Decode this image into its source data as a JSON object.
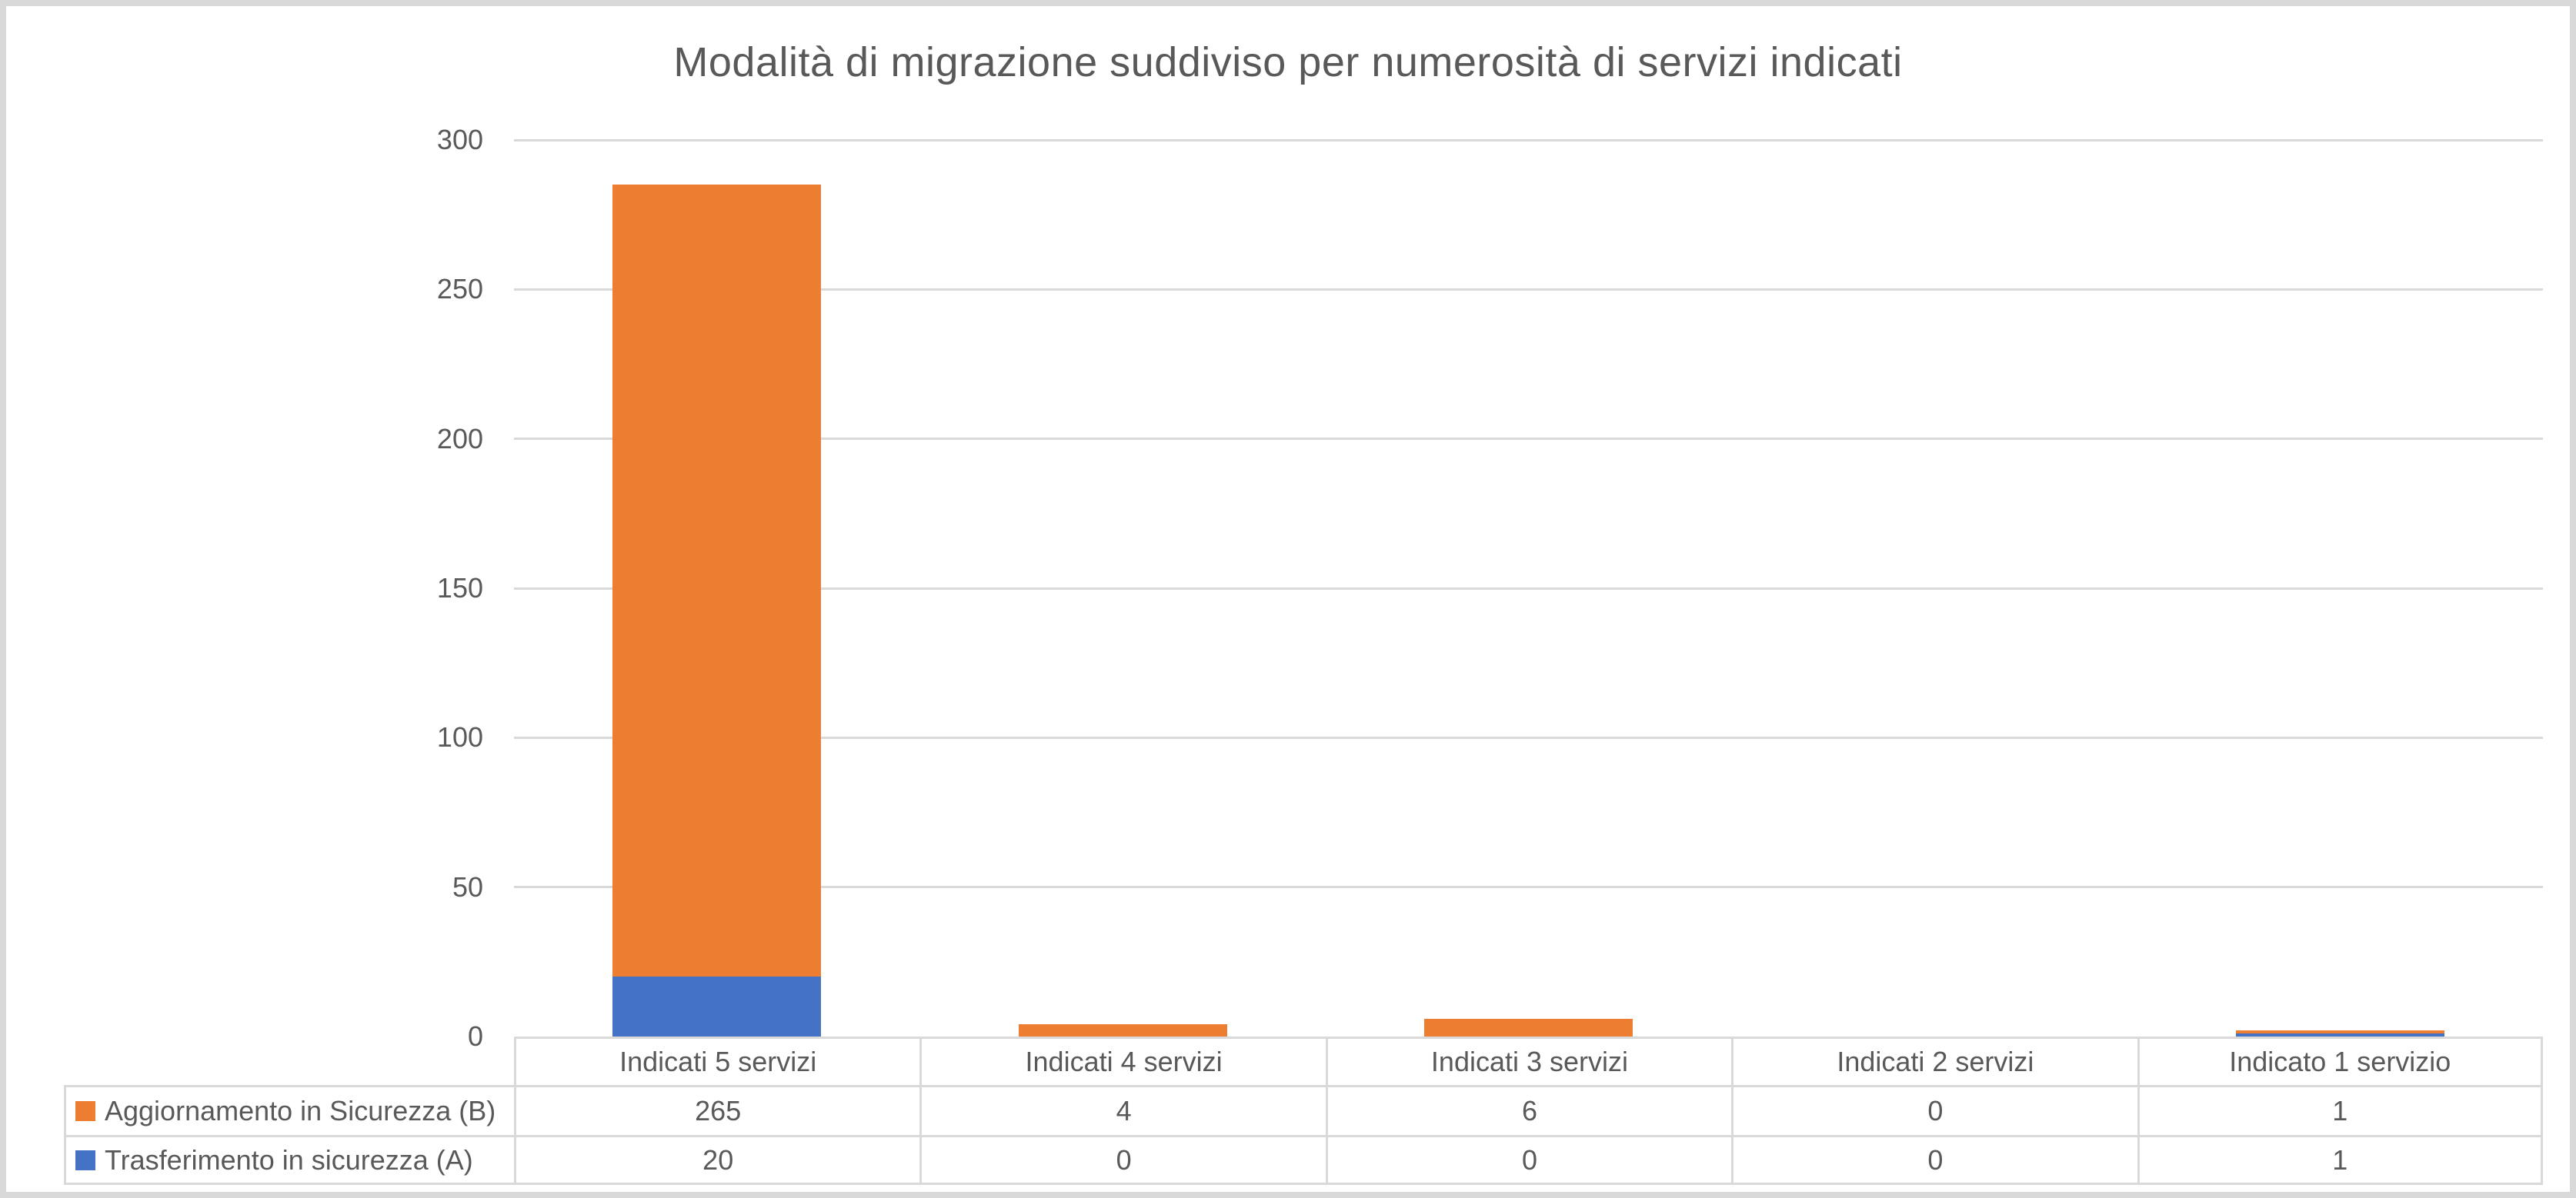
{
  "title": "Modalità di migrazione suddiviso per numerosità di servizi indicati",
  "colors": {
    "series_orange": "#ED7D31",
    "series_blue": "#4472C4",
    "text": "#595959",
    "grid": "#D9D9D9",
    "frame_border": "#D9D9D9",
    "background": "#FFFFFF"
  },
  "chart_data": {
    "type": "bar",
    "stacked": true,
    "title": "Modalità di migrazione suddiviso per numerosità di servizi indicati",
    "categories": [
      "Indicati 5 servizi",
      "Indicati 4 servizi",
      "Indicati 3 servizi",
      "Indicati 2 servizi",
      "Indicato 1 servizio"
    ],
    "series": [
      {
        "name": "Aggiornamento in Sicurezza (B)",
        "color": "#ED7D31",
        "values": [
          265,
          4,
          6,
          0,
          1
        ]
      },
      {
        "name": "Trasferimento in sicurezza (A)",
        "color": "#4472C4",
        "values": [
          20,
          0,
          0,
          0,
          1
        ]
      }
    ],
    "stack_order_bottom_to_top": [
      "Trasferimento in sicurezza (A)",
      "Aggiornamento in Sicurezza (B)"
    ],
    "xlabel": "",
    "ylabel": "",
    "ylim": [
      0,
      300
    ],
    "yticks": [
      0,
      50,
      100,
      150,
      200,
      250,
      300
    ],
    "grid": "horizontal",
    "legend_position": "data-table-left",
    "data_table": true
  }
}
